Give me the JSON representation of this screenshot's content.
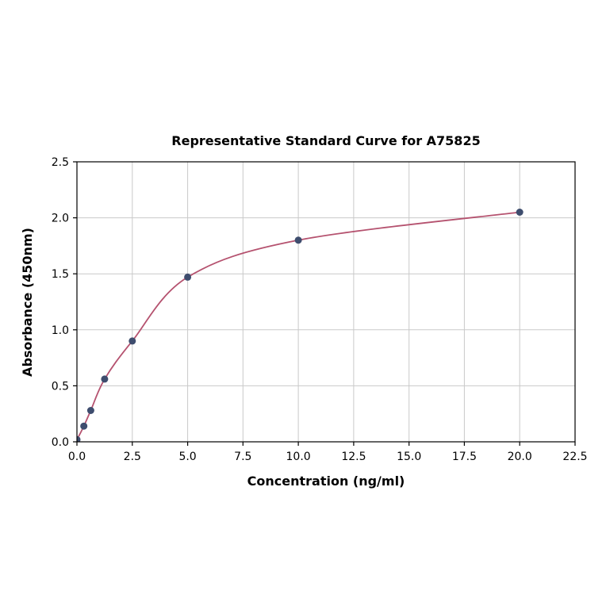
{
  "chart_data": {
    "type": "scatter",
    "title": "Representative Standard Curve for A75825",
    "xlabel": "Concentration (ng/ml)",
    "ylabel": "Absorbance (450nm)",
    "x": [
      0,
      0.3125,
      0.625,
      1.25,
      2.5,
      5,
      10,
      20
    ],
    "y": [
      0.02,
      0.14,
      0.28,
      0.56,
      0.9,
      1.47,
      1.8,
      2.05
    ],
    "xlim": [
      0,
      22.5
    ],
    "ylim": [
      0,
      2.5
    ],
    "xticks": [
      0,
      2.5,
      5,
      7.5,
      10,
      12.5,
      15,
      17.5,
      20,
      22.5
    ],
    "yticks": [
      0,
      0.5,
      1,
      1.5,
      2,
      2.5
    ],
    "grid": true,
    "legend_position": "none",
    "colors": {
      "curve": "#b5526f",
      "point": "#3e4d6e",
      "grid": "#c9c9c9",
      "axis": "#000000",
      "background": "#ffffff"
    }
  }
}
